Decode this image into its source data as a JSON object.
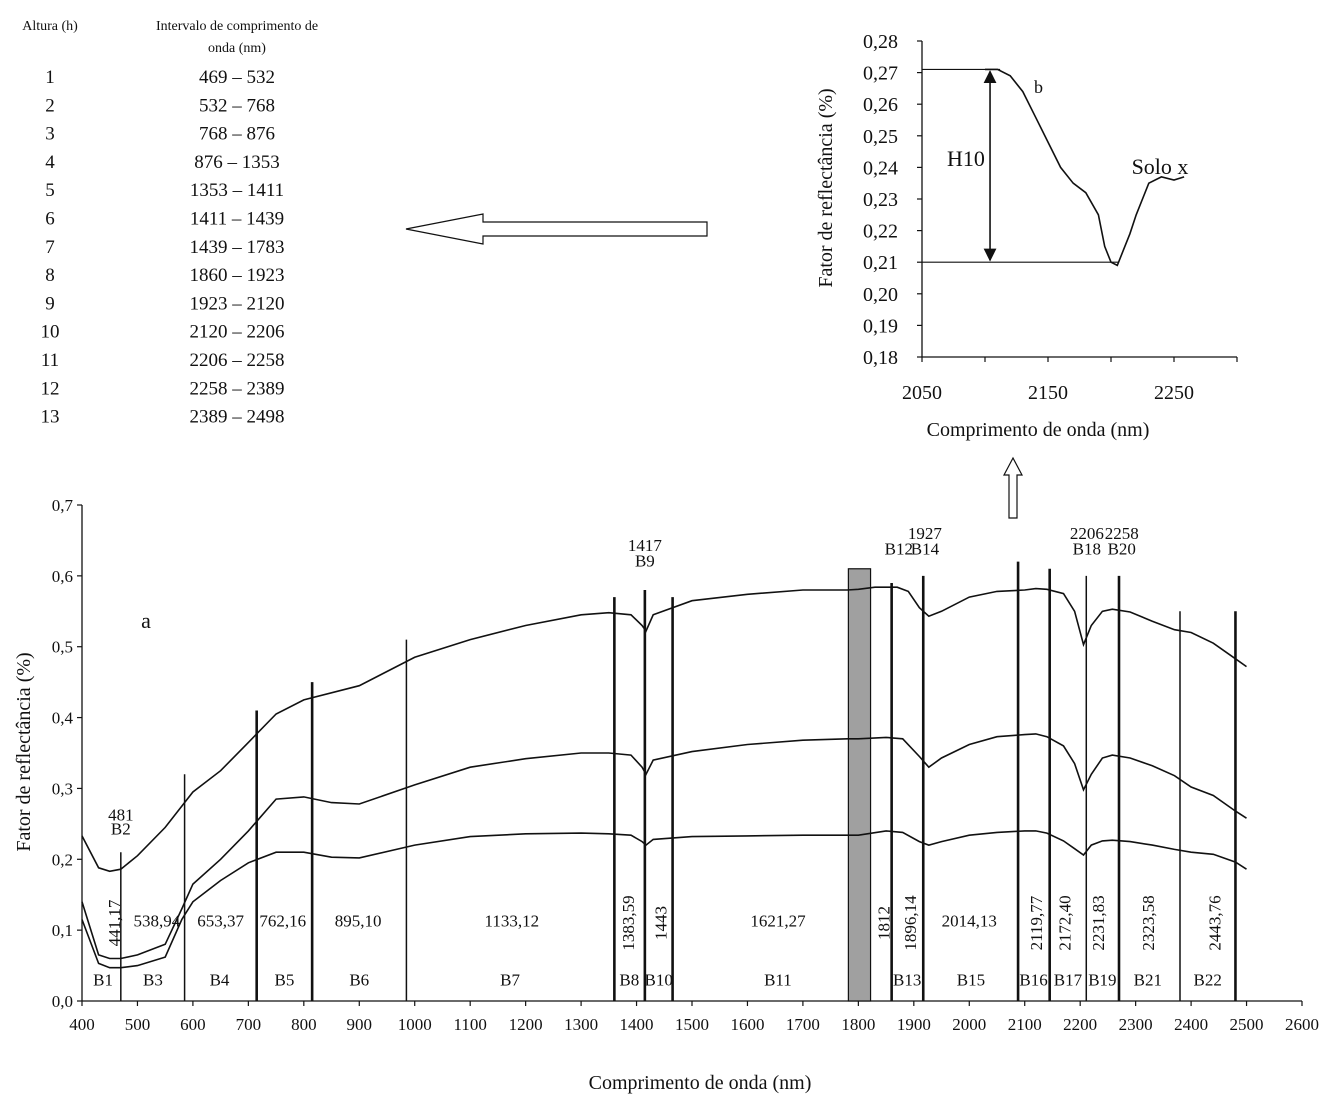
{
  "table": {
    "col1_header": "Altura (h)",
    "col2_header_line1": "Intervalo de comprimento de",
    "col2_header_line2": "onda (nm)",
    "rows": [
      {
        "h": "1",
        "range": "469 – 532"
      },
      {
        "h": "2",
        "range": "532 – 768"
      },
      {
        "h": "3",
        "range": "768 – 876"
      },
      {
        "h": "4",
        "range": "876 – 1353"
      },
      {
        "h": "5",
        "range": "1353 – 1411"
      },
      {
        "h": "6",
        "range": "1411 – 1439"
      },
      {
        "h": "7",
        "range": "1439 – 1783"
      },
      {
        "h": "8",
        "range": "1860 – 1923"
      },
      {
        "h": "9",
        "range": "1923 – 2120"
      },
      {
        "h": "10",
        "range": "2120 – 2206"
      },
      {
        "h": "11",
        "range": "2206 – 2258"
      },
      {
        "h": "12",
        "range": "2258 – 2389"
      },
      {
        "h": "13",
        "range": "2389 – 2498"
      }
    ]
  },
  "chart_data": [
    {
      "type": "line",
      "marker": "a",
      "xlabel": "Comprimento de onda (nm)",
      "ylabel": "Fator de reflectância (%)",
      "xlim": [
        400,
        2600
      ],
      "ylim": [
        0,
        0.7
      ],
      "x_ticks": [
        "400",
        "500",
        "600",
        "700",
        "800",
        "900",
        "1000",
        "1100",
        "1200",
        "1300",
        "1400",
        "1500",
        "1600",
        "1700",
        "1800",
        "1900",
        "2000",
        "2100",
        "2200",
        "2300",
        "2400",
        "2500",
        "2600"
      ],
      "y_ticks": [
        "0,0",
        "0,1",
        "0,2",
        "0,3",
        "0,4",
        "0,5",
        "0,6",
        "0,7"
      ],
      "series": [
        {
          "x": [
            400,
            430,
            450,
            470,
            500,
            550,
            600,
            650,
            700,
            750,
            800,
            900,
            1000,
            1100,
            1200,
            1300,
            1350,
            1390,
            1410,
            1417,
            1430,
            1500,
            1600,
            1700,
            1780,
            1800,
            1830,
            1850,
            1870,
            1890,
            1910,
            1927,
            1950,
            2000,
            2050,
            2100,
            2120,
            2140,
            2170,
            2190,
            2206,
            2220,
            2240,
            2258,
            2290,
            2330,
            2370,
            2400,
            2440,
            2480,
            2500
          ],
          "y": [
            0.233,
            0.188,
            0.183,
            0.186,
            0.205,
            0.245,
            0.295,
            0.325,
            0.365,
            0.405,
            0.425,
            0.445,
            0.485,
            0.51,
            0.53,
            0.545,
            0.548,
            0.545,
            0.53,
            0.522,
            0.545,
            0.565,
            0.574,
            0.58,
            0.58,
            0.581,
            0.584,
            0.584,
            0.584,
            0.578,
            0.555,
            0.543,
            0.55,
            0.57,
            0.578,
            0.58,
            0.582,
            0.581,
            0.575,
            0.55,
            0.503,
            0.53,
            0.55,
            0.553,
            0.549,
            0.536,
            0.524,
            0.52,
            0.505,
            0.483,
            0.472
          ]
        },
        {
          "x": [
            400,
            430,
            450,
            470,
            500,
            550,
            580,
            600,
            650,
            700,
            750,
            800,
            850,
            900,
            1000,
            1100,
            1200,
            1300,
            1350,
            1390,
            1410,
            1417,
            1430,
            1500,
            1600,
            1700,
            1780,
            1800,
            1850,
            1880,
            1910,
            1927,
            1950,
            2000,
            2050,
            2100,
            2120,
            2140,
            2170,
            2190,
            2206,
            2220,
            2240,
            2258,
            2290,
            2330,
            2370,
            2400,
            2440,
            2480,
            2500
          ],
          "y": [
            0.14,
            0.065,
            0.06,
            0.06,
            0.065,
            0.08,
            0.13,
            0.165,
            0.2,
            0.24,
            0.285,
            0.288,
            0.28,
            0.278,
            0.305,
            0.33,
            0.342,
            0.35,
            0.35,
            0.347,
            0.33,
            0.32,
            0.34,
            0.352,
            0.362,
            0.368,
            0.37,
            0.37,
            0.372,
            0.37,
            0.345,
            0.33,
            0.343,
            0.362,
            0.373,
            0.376,
            0.377,
            0.373,
            0.36,
            0.335,
            0.298,
            0.32,
            0.343,
            0.347,
            0.343,
            0.332,
            0.318,
            0.302,
            0.29,
            0.268,
            0.258
          ]
        },
        {
          "x": [
            400,
            430,
            450,
            470,
            500,
            550,
            580,
            600,
            650,
            700,
            750,
            800,
            850,
            900,
            1000,
            1100,
            1200,
            1300,
            1350,
            1390,
            1410,
            1417,
            1430,
            1500,
            1600,
            1700,
            1780,
            1800,
            1850,
            1880,
            1910,
            1927,
            1950,
            2000,
            2050,
            2100,
            2120,
            2140,
            2170,
            2190,
            2206,
            2220,
            2240,
            2258,
            2290,
            2330,
            2370,
            2400,
            2440,
            2480,
            2500
          ],
          "y": [
            0.115,
            0.053,
            0.047,
            0.047,
            0.05,
            0.062,
            0.115,
            0.14,
            0.17,
            0.195,
            0.21,
            0.21,
            0.203,
            0.202,
            0.22,
            0.232,
            0.236,
            0.237,
            0.236,
            0.234,
            0.225,
            0.22,
            0.228,
            0.232,
            0.233,
            0.234,
            0.234,
            0.234,
            0.24,
            0.238,
            0.225,
            0.22,
            0.225,
            0.234,
            0.238,
            0.24,
            0.24,
            0.237,
            0.226,
            0.215,
            0.206,
            0.22,
            0.226,
            0.227,
            0.225,
            0.22,
            0.214,
            0.21,
            0.207,
            0.196,
            0.186
          ]
        }
      ],
      "band_lines": [
        {
          "x": 470,
          "top": 0.21,
          "heavy": false
        },
        {
          "x": 585,
          "top": 0.32,
          "heavy": false
        },
        {
          "x": 715,
          "top": 0.41,
          "heavy": true
        },
        {
          "x": 815,
          "top": 0.45,
          "heavy": true
        },
        {
          "x": 985,
          "top": 0.51,
          "heavy": false
        },
        {
          "x": 1360,
          "top": 0.57,
          "heavy": true
        },
        {
          "x": 1415,
          "top": 0.58,
          "heavy": true
        },
        {
          "x": 1465,
          "top": 0.57,
          "heavy": true
        },
        {
          "x": 1860,
          "top": 0.59,
          "heavy": true
        },
        {
          "x": 1917,
          "top": 0.6,
          "heavy": true
        },
        {
          "x": 2088,
          "top": 0.62,
          "heavy": true
        },
        {
          "x": 2145,
          "top": 0.61,
          "heavy": true
        },
        {
          "x": 2211,
          "top": 0.6,
          "heavy": false
        },
        {
          "x": 2270,
          "top": 0.6,
          "heavy": true
        },
        {
          "x": 2380,
          "top": 0.55,
          "heavy": false
        },
        {
          "x": 2480,
          "top": 0.55,
          "heavy": true
        }
      ],
      "water_band": {
        "x0": 1782,
        "x1": 1822,
        "top": 0.61,
        "color": "#a0a0a0"
      },
      "top_labels": [
        {
          "x": 470,
          "y": 0.255,
          "text": "481"
        },
        {
          "x": 470,
          "y": 0.235,
          "text": "B2"
        },
        {
          "x": 1415,
          "y": 0.635,
          "text": "1417"
        },
        {
          "x": 1415,
          "y": 0.613,
          "text": "B9"
        },
        {
          "x": 1873,
          "y": 0.63,
          "text": "B12"
        },
        {
          "x": 1920,
          "y": 0.652,
          "text": "1927"
        },
        {
          "x": 1920,
          "y": 0.63,
          "text": "B14"
        },
        {
          "x": 2212,
          "y": 0.652,
          "text": "2206"
        },
        {
          "x": 2212,
          "y": 0.63,
          "text": "B18"
        },
        {
          "x": 2275,
          "y": 0.652,
          "text": "2258"
        },
        {
          "x": 2275,
          "y": 0.63,
          "text": "B20"
        }
      ],
      "centers_horizontal": [
        {
          "x": 535,
          "text": "538,94"
        },
        {
          "x": 650,
          "text": "653,37"
        },
        {
          "x": 762,
          "text": "762,16"
        },
        {
          "x": 898,
          "text": "895,10"
        },
        {
          "x": 1175,
          "text": "1133,12"
        },
        {
          "x": 1655,
          "text": "1621,27"
        },
        {
          "x": 2000,
          "text": "2014,13"
        }
      ],
      "centers_vertical": [
        {
          "x": 458,
          "text": "441,17"
        },
        {
          "x": 1385,
          "text": "1383,59"
        },
        {
          "x": 1443,
          "text": "1443"
        },
        {
          "x": 1845,
          "text": "1812"
        },
        {
          "x": 1893,
          "text": "1896,14"
        },
        {
          "x": 2120,
          "text": "2119,77"
        },
        {
          "x": 2172,
          "text": "2172,40"
        },
        {
          "x": 2232,
          "text": "2231,83"
        },
        {
          "x": 2322,
          "text": "2323,58"
        },
        {
          "x": 2442,
          "text": "2443,76"
        }
      ],
      "band_names": [
        {
          "x": 438,
          "text": "B1"
        },
        {
          "x": 528,
          "text": "B3"
        },
        {
          "x": 648,
          "text": "B4"
        },
        {
          "x": 765,
          "text": "B5"
        },
        {
          "x": 900,
          "text": "B6"
        },
        {
          "x": 1172,
          "text": "B7"
        },
        {
          "x": 1387,
          "text": "B8"
        },
        {
          "x": 1440,
          "text": "B10"
        },
        {
          "x": 1655,
          "text": "B11"
        },
        {
          "x": 1888,
          "text": "B13"
        },
        {
          "x": 2003,
          "text": "B15"
        },
        {
          "x": 2116,
          "text": "B16"
        },
        {
          "x": 2178,
          "text": "B17"
        },
        {
          "x": 2240,
          "text": "B19"
        },
        {
          "x": 2322,
          "text": "B21"
        },
        {
          "x": 2430,
          "text": "B22"
        }
      ]
    },
    {
      "type": "line",
      "marker": "b",
      "xlabel": "Comprimento de onda (nm)",
      "ylabel": "Fator de reflectância (%)",
      "xlim": [
        2050,
        2300
      ],
      "ylim": [
        0.18,
        0.28
      ],
      "x_ticks": [
        "2050",
        "2150",
        "2250"
      ],
      "y_ticks": [
        "0,18",
        "0,19",
        "0,20",
        "0,21",
        "0,22",
        "0,23",
        "0,24",
        "0,25",
        "0,26",
        "0,27",
        "0,28"
      ],
      "series": [
        {
          "name": "Solo x",
          "x": [
            2100,
            2110,
            2120,
            2130,
            2140,
            2150,
            2160,
            2170,
            2180,
            2190,
            2195,
            2200,
            2205,
            2210,
            2215,
            2220,
            2230,
            2240,
            2250,
            2258
          ],
          "y": [
            0.271,
            0.271,
            0.269,
            0.264,
            0.256,
            0.248,
            0.24,
            0.235,
            0.232,
            0.225,
            0.215,
            0.21,
            0.209,
            0.214,
            0.219,
            0.225,
            0.235,
            0.237,
            0.236,
            0.237
          ]
        }
      ],
      "height_line": {
        "top": 0.271,
        "bottom": 0.21,
        "x": 2104,
        "label": "H10"
      }
    }
  ]
}
